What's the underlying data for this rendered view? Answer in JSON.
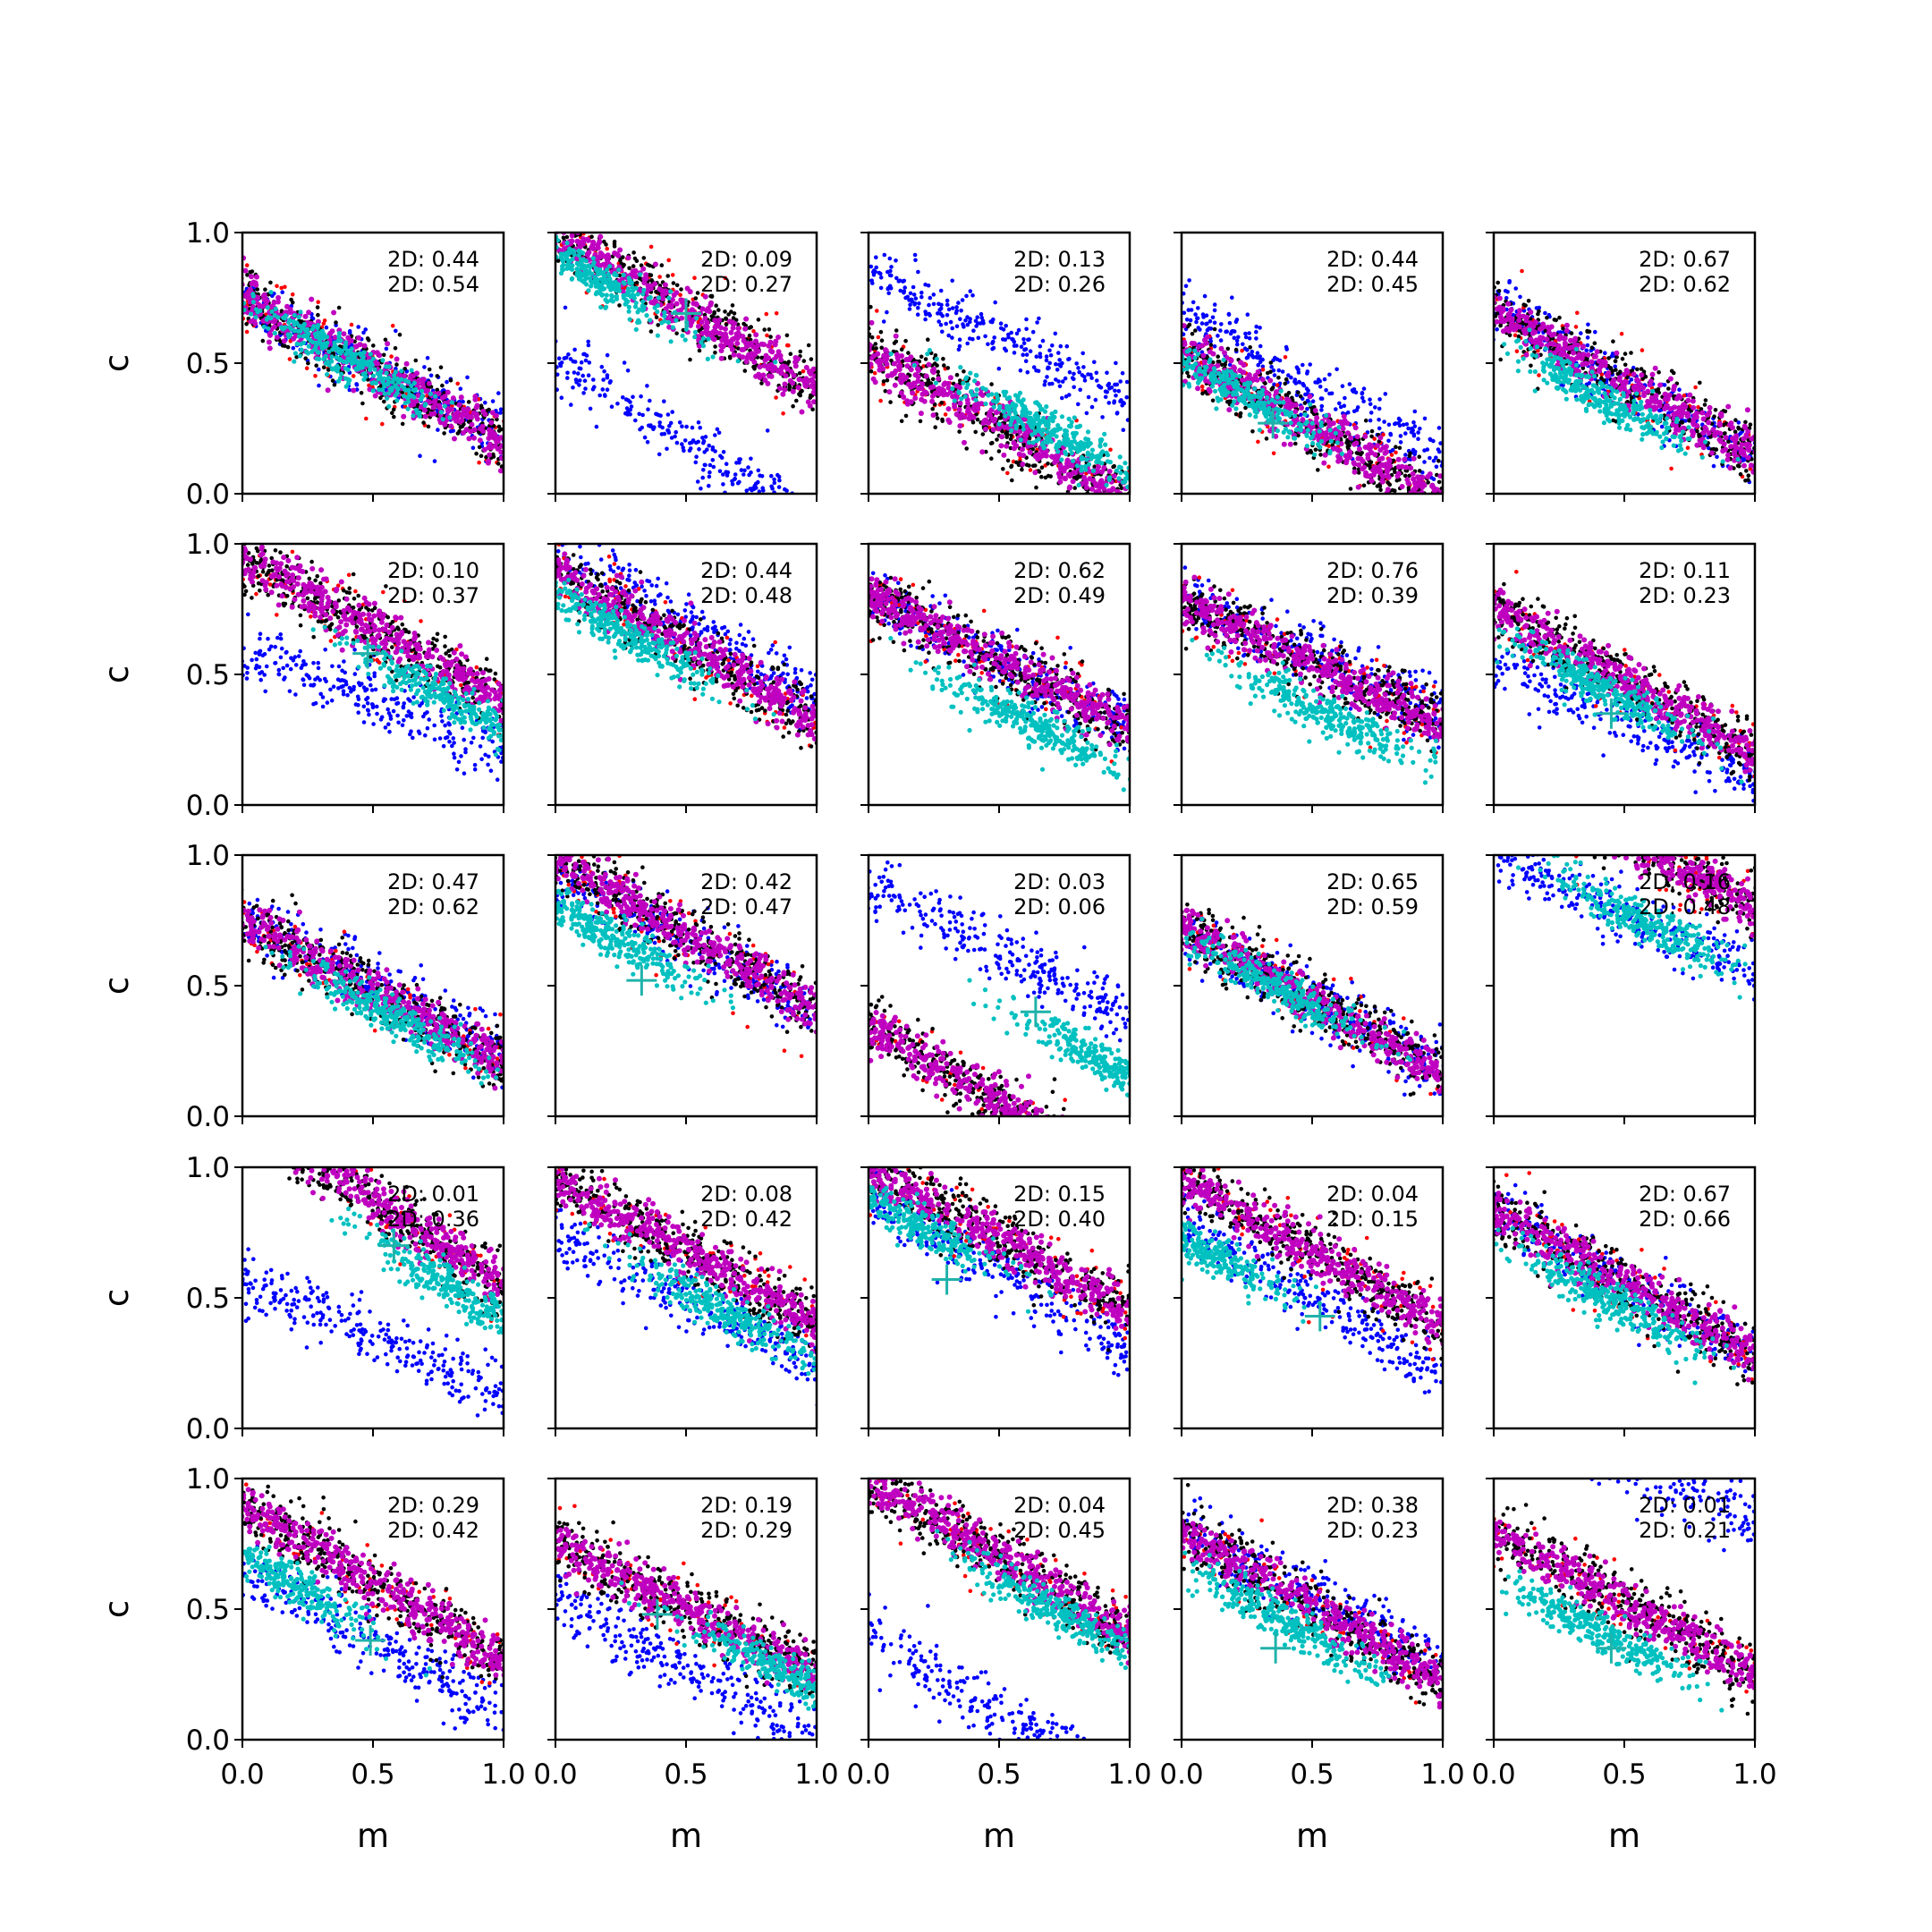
{
  "colors": {
    "cluster_a": "#0000ff",
    "cluster_b": "#ff0000",
    "cluster_b_dense": "#000000",
    "posterior_outer": "#c000c0",
    "posterior_inner": "#00c0c0",
    "truth_marker": "#20b2aa"
  },
  "chart_data": {
    "type": "scatter",
    "grid": false,
    "layout": "5x5 small multiples, shared axes",
    "xlabel": "m",
    "ylabel": "c",
    "xlim": [
      0,
      1
    ],
    "ylim": [
      0,
      1
    ],
    "xticks": [
      "0.0",
      "0.5",
      "1.0"
    ],
    "yticks": [
      "0.0",
      "0.5",
      "1.0"
    ],
    "annotation_prefix": "2D:",
    "panels": [
      {
        "a1": "0.44",
        "a2": "0.54",
        "mk": null,
        "A": [
          0.75,
          -0.52
        ],
        "B": [
          0.75,
          -0.55
        ],
        "C": [
          0.4,
          0.52
        ]
      },
      {
        "a1": "0.09",
        "a2": "0.27",
        "mk": [
          0.5,
          0.69
        ],
        "A": [
          0.5,
          -0.6
        ],
        "B": [
          1.0,
          -0.6
        ],
        "C": [
          0.15,
          0.83
        ]
      },
      {
        "a1": "0.13",
        "a2": "0.26",
        "mk": null,
        "A": [
          0.85,
          -0.5
        ],
        "B": [
          0.55,
          -0.58
        ],
        "C": [
          0.7,
          0.24
        ]
      },
      {
        "a1": "0.44",
        "a2": "0.45",
        "mk": [
          0.35,
          0.27
        ],
        "A": [
          0.68,
          -0.55
        ],
        "B": [
          0.55,
          -0.58
        ],
        "C": [
          0.2,
          0.4
        ]
      },
      {
        "a1": "0.67",
        "a2": "0.62",
        "mk": null,
        "A": [
          0.72,
          -0.6
        ],
        "B": [
          0.7,
          -0.55
        ],
        "C": [
          0.4,
          0.38
        ]
      },
      {
        "a1": "0.10",
        "a2": "0.37",
        "mk": [
          0.48,
          0.58
        ],
        "A": [
          0.6,
          -0.38
        ],
        "B": [
          0.95,
          -0.55
        ],
        "C": [
          0.8,
          0.4
        ]
      },
      {
        "a1": "0.44",
        "a2": "0.48",
        "mk": null,
        "A": [
          1.0,
          -0.6
        ],
        "B": [
          0.9,
          -0.58
        ],
        "C": [
          0.25,
          0.67
        ]
      },
      {
        "a1": "0.62",
        "a2": "0.49",
        "mk": null,
        "A": [
          0.8,
          -0.5
        ],
        "B": [
          0.8,
          -0.5
        ],
        "C": [
          0.65,
          0.3
        ]
      },
      {
        "a1": "0.76",
        "a2": "0.39",
        "mk": null,
        "A": [
          0.8,
          -0.45
        ],
        "B": [
          0.78,
          -0.48
        ],
        "C": [
          0.55,
          0.35
        ]
      },
      {
        "a1": "0.11",
        "a2": "0.23",
        "mk": [
          0.45,
          0.35
        ],
        "A": [
          0.55,
          -0.45
        ],
        "B": [
          0.75,
          -0.55
        ],
        "C": [
          0.4,
          0.45
        ]
      },
      {
        "a1": "0.47",
        "a2": "0.62",
        "mk": null,
        "A": [
          0.78,
          -0.55
        ],
        "B": [
          0.75,
          -0.55
        ],
        "C": [
          0.55,
          0.4
        ]
      },
      {
        "a1": "0.42",
        "a2": "0.47",
        "mk": [
          0.33,
          0.52
        ],
        "A": [
          0.95,
          -0.55
        ],
        "B": [
          0.98,
          -0.58
        ],
        "C": [
          0.2,
          0.7
        ]
      },
      {
        "a1": "0.03",
        "a2": "0.06",
        "mk": [
          0.64,
          0.4
        ],
        "A": [
          0.88,
          -0.5
        ],
        "B": [
          0.35,
          -0.6
        ],
        "C": [
          0.9,
          0.2
        ]
      },
      {
        "a1": "0.65",
        "a2": "0.59",
        "mk": null,
        "A": [
          0.72,
          -0.55
        ],
        "B": [
          0.72,
          -0.55
        ],
        "C": [
          0.35,
          0.5
        ]
      },
      {
        "a1": "0.16",
        "a2": "0.48",
        "mk": null,
        "A": [
          1.0,
          -0.45
        ],
        "B": [
          1.35,
          -0.55
        ],
        "C": [
          0.55,
          0.76
        ]
      },
      {
        "a1": "0.01",
        "a2": "0.36",
        "mk": [
          0.58,
          0.7
        ],
        "A": [
          0.58,
          -0.45
        ],
        "B": [
          1.2,
          -0.65
        ],
        "C": [
          0.83,
          0.52
        ]
      },
      {
        "a1": "0.08",
        "a2": "0.42",
        "mk": null,
        "A": [
          0.75,
          -0.5
        ],
        "B": [
          0.95,
          -0.55
        ],
        "C": [
          0.65,
          0.45
        ]
      },
      {
        "a1": "0.15",
        "a2": "0.40",
        "mk": [
          0.3,
          0.57
        ],
        "A": [
          0.9,
          -0.6
        ],
        "B": [
          1.0,
          -0.55
        ],
        "C": [
          0.15,
          0.8
        ]
      },
      {
        "a1": "0.04",
        "a2": "0.15",
        "mk": [
          0.53,
          0.43
        ],
        "A": [
          0.8,
          -0.6
        ],
        "B": [
          0.95,
          -0.55
        ],
        "C": [
          0.1,
          0.68
        ]
      },
      {
        "a1": "0.67",
        "a2": "0.66",
        "mk": null,
        "A": [
          0.83,
          -0.55
        ],
        "B": [
          0.83,
          -0.55
        ],
        "C": [
          0.45,
          0.48
        ]
      },
      {
        "a1": "0.29",
        "a2": "0.42",
        "mk": [
          0.49,
          0.38
        ],
        "A": [
          0.65,
          -0.55
        ],
        "B": [
          0.9,
          -0.6
        ],
        "C": [
          0.15,
          0.62
        ]
      },
      {
        "a1": "0.19",
        "a2": "0.29",
        "mk": [
          0.39,
          0.48
        ],
        "A": [
          0.55,
          -0.55
        ],
        "B": [
          0.75,
          -0.5
        ],
        "C": [
          0.9,
          0.25
        ]
      },
      {
        "a1": "0.04",
        "a2": "0.45",
        "mk": null,
        "A": [
          0.4,
          -0.6
        ],
        "B": [
          1.0,
          -0.6
        ],
        "C": [
          0.7,
          0.5
        ]
      },
      {
        "a1": "0.38",
        "a2": "0.23",
        "mk": [
          0.36,
          0.35
        ],
        "A": [
          0.8,
          -0.5
        ],
        "B": [
          0.8,
          -0.58
        ],
        "C": [
          0.4,
          0.45
        ]
      },
      {
        "a1": "0.01",
        "a2": "0.21",
        "mk": [
          0.45,
          0.35
        ],
        "A": [
          1.32,
          -0.5
        ],
        "B": [
          0.8,
          -0.55
        ],
        "C": [
          0.4,
          0.42
        ]
      }
    ]
  }
}
